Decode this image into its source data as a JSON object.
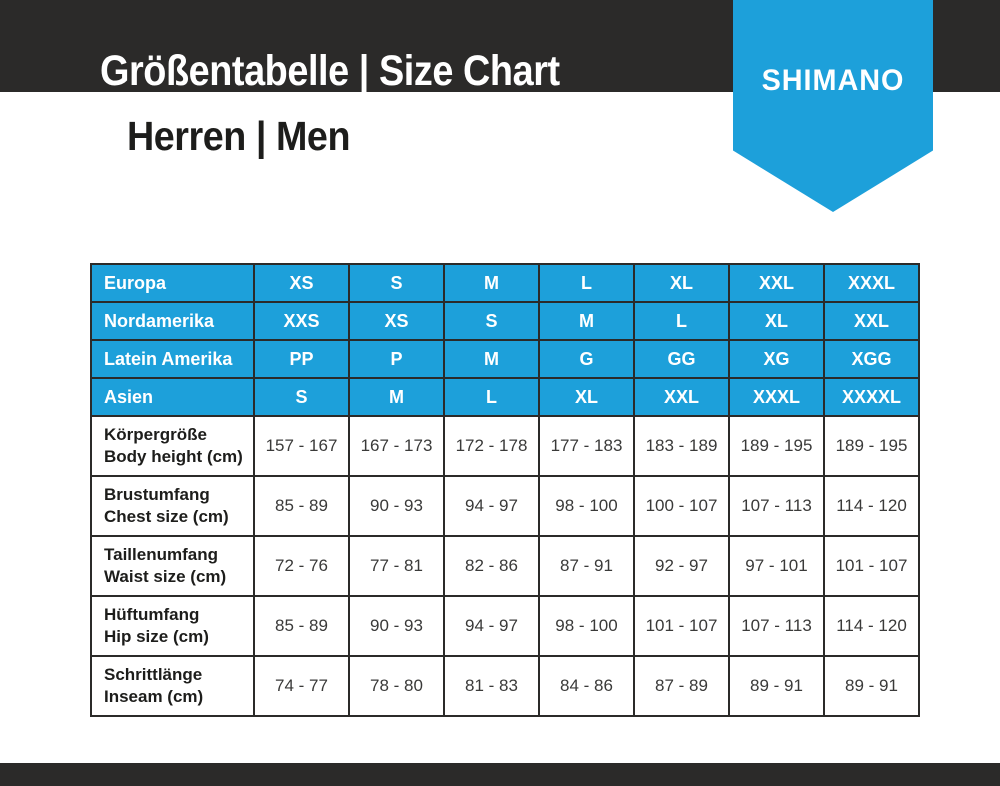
{
  "colors": {
    "brand_blue": "#1da0da",
    "bar_dark": "#2b2a29"
  },
  "header": {
    "title": "Größentabelle | Size Chart",
    "subtitle": "Herren | Men",
    "brand": "SHIMANO"
  },
  "chart_data": {
    "type": "table",
    "title": "Größentabelle | Size Chart",
    "subtitle": "Herren | Men",
    "size_rows": [
      {
        "label": "Europa",
        "values": [
          "XS",
          "S",
          "M",
          "L",
          "XL",
          "XXL",
          "XXXL"
        ]
      },
      {
        "label": "Nordamerika",
        "values": [
          "XXS",
          "XS",
          "S",
          "M",
          "L",
          "XL",
          "XXL"
        ]
      },
      {
        "label": "Latein Amerika",
        "values": [
          "PP",
          "P",
          "M",
          "G",
          "GG",
          "XG",
          "XGG"
        ]
      },
      {
        "label": "Asien",
        "values": [
          "S",
          "M",
          "L",
          "XL",
          "XXL",
          "XXXL",
          "XXXXL"
        ]
      }
    ],
    "measure_rows": [
      {
        "label_de": "Körpergröße",
        "label_en": "Body height (cm)",
        "values": [
          "157 - 167",
          "167 - 173",
          "172 - 178",
          "177 - 183",
          "183 - 189",
          "189 - 195",
          "189 - 195"
        ]
      },
      {
        "label_de": "Brustumfang",
        "label_en": "Chest size (cm)",
        "values": [
          "85 - 89",
          "90 - 93",
          "94 - 97",
          "98 - 100",
          "100 - 107",
          "107 - 113",
          "114 - 120"
        ]
      },
      {
        "label_de": "Taillenumfang",
        "label_en": "Waist size (cm)",
        "values": [
          "72 - 76",
          "77 - 81",
          "82 - 86",
          "87 - 91",
          "92 - 97",
          "97 - 101",
          "101 - 107"
        ]
      },
      {
        "label_de": "Hüftumfang",
        "label_en": "Hip size (cm)",
        "values": [
          "85 - 89",
          "90 - 93",
          "94 - 97",
          "98 - 100",
          "101 - 107",
          "107 - 113",
          "114 - 120"
        ]
      },
      {
        "label_de": "Schrittlänge",
        "label_en": "Inseam (cm)",
        "values": [
          "74 - 77",
          "78 - 80",
          "81 - 83",
          "84 - 86",
          "87 - 89",
          "89 - 91",
          "89 - 91"
        ]
      }
    ]
  }
}
